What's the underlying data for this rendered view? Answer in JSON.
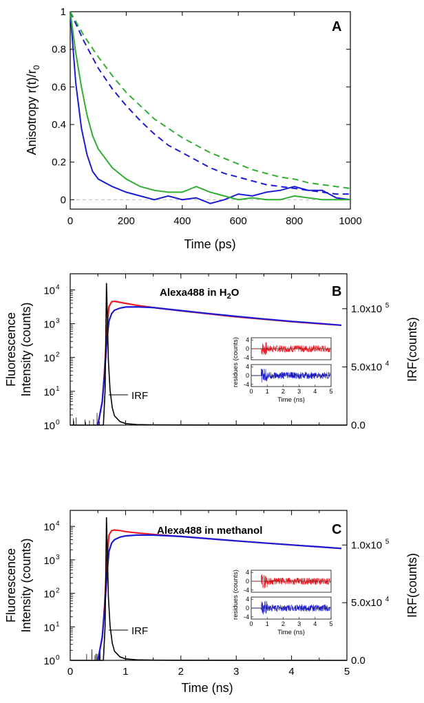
{
  "colors": {
    "red": "#ee1c25",
    "blue": "#1a1ad6",
    "green": "#2fae2f",
    "black": "#000000",
    "zero_line": "#bbbbbb"
  },
  "panel_a": {
    "letter": "A",
    "xlabel": "Time (ps)",
    "ylabel_main": "Anisotropy r(t)/r",
    "ylabel_sub": "0",
    "xticks": [
      "0",
      "200",
      "400",
      "600",
      "800",
      "1000"
    ],
    "yticks": [
      "0",
      "0.2",
      "0.4",
      "0.6",
      "0.8",
      "1"
    ]
  },
  "panel_b": {
    "letter": "B",
    "title_pre": "Alexa488 in H",
    "title_sub": "2",
    "title_post": "O",
    "ylabel_line1": "Fluorescence",
    "ylabel_line2": "Intensity (counts)",
    "ylabel_right": "IRF(counts)",
    "irf_label": "IRF",
    "yticks_right": [
      "0.0",
      "5.0x10",
      "1.0x10"
    ],
    "yticks_right_exp": [
      "",
      "4",
      "5"
    ]
  },
  "panel_c": {
    "letter": "C",
    "title": "Alexa488 in methanol",
    "ylabel_line1": "Fluorescence",
    "ylabel_line2": "Intensity (counts)",
    "ylabel_right": "IRF(counts)",
    "irf_label": "IRF",
    "xlabel": "Time (ns)",
    "xticks": [
      "0",
      "1",
      "2",
      "3",
      "4",
      "5"
    ],
    "yticks_right": [
      "0.0",
      "5.0x10",
      "1.0x10"
    ],
    "yticks_right_exp": [
      "",
      "4",
      "5"
    ]
  },
  "log_ticks": {
    "base": "10",
    "exps": [
      "0",
      "1",
      "2",
      "3",
      "4"
    ]
  },
  "inset": {
    "ylabel": "residues (counts)",
    "xlabel": "Time (ns)",
    "yticks": [
      "4",
      "0",
      "-4"
    ],
    "xticks": [
      "0",
      "1",
      "2",
      "3",
      "4",
      "5"
    ]
  },
  "chart_data": [
    {
      "type": "line",
      "panel": "A",
      "xlabel": "Time (ps)",
      "ylabel": "Anisotropy r(t)/r0",
      "xlim": [
        0,
        1000
      ],
      "ylim": [
        -0.05,
        1.0
      ],
      "series": [
        {
          "color": "blue",
          "style": "solid",
          "x": [
            0,
            20,
            40,
            60,
            80,
            100,
            150,
            200,
            250,
            300,
            350,
            400,
            450,
            500,
            550,
            600,
            650,
            700,
            750,
            800,
            850,
            900,
            950,
            1000
          ],
          "y": [
            1.0,
            0.62,
            0.38,
            0.24,
            0.15,
            0.11,
            0.07,
            0.04,
            0.02,
            0.0,
            0.02,
            0.0,
            0.01,
            -0.02,
            0.0,
            0.03,
            0.02,
            0.04,
            0.05,
            0.07,
            0.05,
            0.05,
            0.01,
            0.0
          ]
        },
        {
          "color": "green",
          "style": "solid",
          "x": [
            0,
            20,
            40,
            60,
            80,
            100,
            150,
            200,
            250,
            300,
            350,
            400,
            450,
            500,
            550,
            600,
            650,
            700,
            750,
            800,
            850,
            900,
            950,
            1000
          ],
          "y": [
            1.0,
            0.78,
            0.6,
            0.45,
            0.34,
            0.27,
            0.17,
            0.11,
            0.07,
            0.05,
            0.04,
            0.04,
            0.07,
            0.04,
            0.02,
            0.0,
            0.01,
            0.0,
            0.0,
            0.02,
            0.01,
            0.0,
            0.0,
            0.0
          ]
        },
        {
          "color": "blue",
          "style": "dashed",
          "x": [
            0,
            50,
            100,
            150,
            200,
            250,
            300,
            350,
            400,
            450,
            500,
            550,
            600,
            650,
            700,
            750,
            800,
            850,
            900,
            950,
            1000
          ],
          "y": [
            1.0,
            0.84,
            0.7,
            0.59,
            0.5,
            0.42,
            0.35,
            0.29,
            0.25,
            0.21,
            0.17,
            0.14,
            0.12,
            0.1,
            0.08,
            0.07,
            0.06,
            0.05,
            0.04,
            0.03,
            0.03
          ]
        },
        {
          "color": "green",
          "style": "dashed",
          "x": [
            0,
            50,
            100,
            150,
            200,
            250,
            300,
            350,
            400,
            450,
            500,
            550,
            600,
            650,
            700,
            750,
            800,
            850,
            900,
            950,
            1000
          ],
          "y": [
            1.0,
            0.87,
            0.76,
            0.66,
            0.57,
            0.5,
            0.43,
            0.38,
            0.33,
            0.29,
            0.25,
            0.22,
            0.19,
            0.16,
            0.14,
            0.12,
            0.11,
            0.09,
            0.08,
            0.07,
            0.06
          ]
        }
      ]
    },
    {
      "type": "line",
      "panel": "B",
      "xlabel": "",
      "ylabel": "Fluorescence Intensity (counts)",
      "ylabel_right": "IRF(counts)",
      "xlim": [
        0,
        5
      ],
      "ylim_log": [
        1,
        30000
      ],
      "yscale": "log",
      "ylim_right": [
        0,
        130000
      ],
      "series": [
        {
          "color": "red",
          "x": [
            0.5,
            0.58,
            0.62,
            0.66,
            0.7,
            0.75,
            0.8,
            0.9,
            1.0,
            1.2,
            1.5,
            2.0,
            2.5,
            3.0,
            3.5,
            4.0,
            4.5,
            4.9
          ],
          "y": [
            1,
            5,
            40,
            600,
            3200,
            4500,
            4600,
            4300,
            4000,
            3500,
            3000,
            2400,
            1950,
            1600,
            1350,
            1150,
            1000,
            900
          ]
        },
        {
          "color": "blue",
          "x": [
            0.5,
            0.58,
            0.62,
            0.66,
            0.7,
            0.75,
            0.8,
            0.9,
            1.0,
            1.2,
            1.5,
            2.0,
            2.5,
            3.0,
            3.5,
            4.0,
            4.5,
            4.9
          ],
          "y": [
            1,
            5,
            30,
            300,
            1200,
            2000,
            2500,
            2900,
            3100,
            3150,
            3000,
            2450,
            2000,
            1650,
            1380,
            1170,
            1020,
            900
          ]
        },
        {
          "color": "black",
          "axis": "right",
          "name": "IRF",
          "x": [
            0.0,
            0.6,
            0.63,
            0.655,
            0.67,
            0.69,
            0.72,
            0.76,
            0.8,
            0.9,
            1.0,
            1.2,
            1.5,
            2.0,
            5.0
          ],
          "y": [
            0,
            0,
            30000,
            122000,
            95000,
            55000,
            30000,
            15000,
            8000,
            3000,
            1300,
            500,
            200,
            100,
            0
          ]
        }
      ]
    },
    {
      "type": "line",
      "panel": "C",
      "xlabel": "Time (ns)",
      "ylabel": "Fluorescence Intensity (counts)",
      "ylabel_right": "IRF(counts)",
      "xlim": [
        0,
        5
      ],
      "ylim_log": [
        1,
        30000
      ],
      "yscale": "log",
      "ylim_right": [
        0,
        130000
      ],
      "series": [
        {
          "color": "red",
          "x": [
            0.5,
            0.58,
            0.62,
            0.66,
            0.7,
            0.75,
            0.8,
            0.9,
            1.0,
            1.2,
            1.5,
            2.0,
            2.5,
            3.0,
            3.5,
            4.0,
            4.5,
            4.9
          ],
          "y": [
            1,
            5,
            40,
            800,
            5500,
            7500,
            7800,
            7500,
            7000,
            6400,
            5800,
            5000,
            4300,
            3700,
            3200,
            2800,
            2450,
            2200
          ]
        },
        {
          "color": "blue",
          "x": [
            0.5,
            0.58,
            0.62,
            0.66,
            0.7,
            0.75,
            0.8,
            0.9,
            1.0,
            1.2,
            1.5,
            2.0,
            2.5,
            3.0,
            3.5,
            4.0,
            4.5,
            4.9
          ],
          "y": [
            1,
            5,
            30,
            300,
            1800,
            3200,
            4000,
            4800,
            5200,
            5500,
            5500,
            5000,
            4300,
            3700,
            3200,
            2800,
            2450,
            2200
          ]
        },
        {
          "color": "black",
          "axis": "right",
          "name": "IRF",
          "x": [
            0.0,
            0.6,
            0.63,
            0.655,
            0.67,
            0.69,
            0.72,
            0.76,
            0.8,
            0.9,
            1.0,
            1.2,
            1.5,
            2.0,
            5.0
          ],
          "y": [
            0,
            0,
            30000,
            124000,
            95000,
            55000,
            30000,
            15000,
            8000,
            3000,
            1300,
            500,
            200,
            100,
            0
          ]
        }
      ]
    }
  ]
}
